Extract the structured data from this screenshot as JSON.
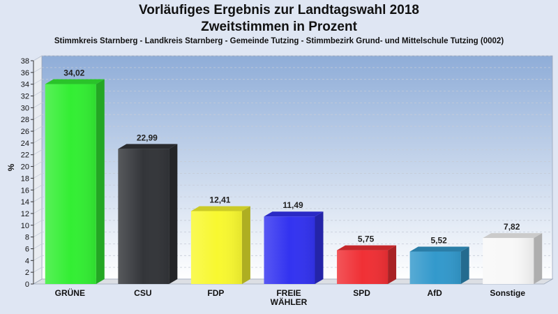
{
  "chart_data": {
    "type": "bar",
    "title": "Vorläufiges Ergebnis zur Landtagswahl 2018",
    "title_line2": "Zweitstimmen in Prozent",
    "subtitle": "Stimmkreis Starnberg - Landkreis Starnberg - Gemeinde Tutzing - Stimmbezirk Grund- und Mittelschule Tutzing (0002)",
    "ylabel": "%",
    "xlabel": "",
    "ylim": [
      0,
      38
    ],
    "ytick_step": 2,
    "grid": true,
    "legend": "none",
    "categories": [
      "GRÜNE",
      "CSU",
      "FDP",
      "FREIE WÄHLER",
      "SPD",
      "AfD",
      "Sonstige"
    ],
    "category_lines": [
      [
        "GRÜNE"
      ],
      [
        "CSU"
      ],
      [
        "FDP"
      ],
      [
        "FREIE",
        "WÄHLER"
      ],
      [
        "SPD"
      ],
      [
        "AfD"
      ],
      [
        "Sonstige"
      ]
    ],
    "values": [
      34.02,
      22.99,
      12.41,
      11.49,
      5.75,
      5.52,
      7.82
    ],
    "value_labels": [
      "34,02",
      "22,99",
      "12,41",
      "11,49",
      "5,75",
      "5,52",
      "7,82"
    ],
    "colors": [
      "#33ee33",
      "#333539",
      "#f8f830",
      "#3333f0",
      "#f03035",
      "#3399cc",
      "#f8f8f8"
    ]
  }
}
